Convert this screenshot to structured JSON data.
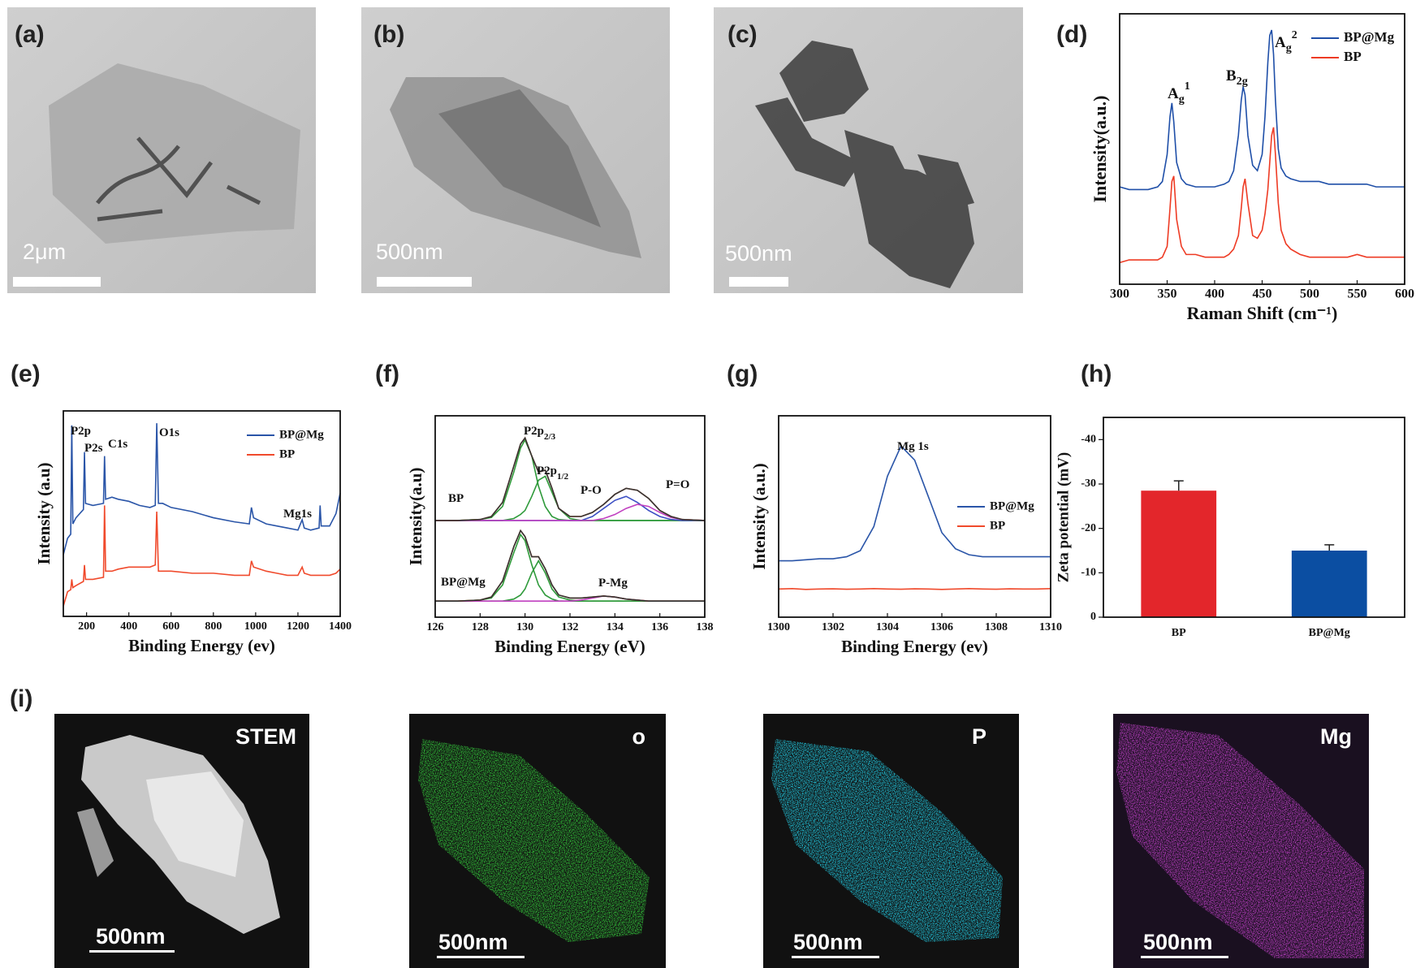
{
  "panels": {
    "a": {
      "label": "(a)",
      "scale": "2μm"
    },
    "b": {
      "label": "(b)",
      "scale": "500nm"
    },
    "c": {
      "label": "(c)",
      "scale": "500nm"
    },
    "i": {
      "label": "(i)",
      "maps": [
        {
          "title": "STEM",
          "scale": "500nm"
        },
        {
          "title": "o",
          "scale": "500nm"
        },
        {
          "title": "P",
          "scale": "500nm"
        },
        {
          "title": "Mg",
          "scale": "500nm"
        }
      ]
    }
  },
  "chart_data": [
    {
      "type": "line",
      "label": "(d)",
      "xlabel": "Raman Shift (cm⁻¹)",
      "ylabel": "Intensity(a.u.)",
      "xlim": [
        300,
        600
      ],
      "xticks": [
        300,
        350,
        400,
        450,
        500,
        550,
        600
      ],
      "ylim": [
        0,
        100
      ],
      "legend": "upper right",
      "annotations": [
        {
          "text": "A",
          "sub": "g",
          "sup": "1"
        },
        {
          "text": "B",
          "sub": "2g"
        },
        {
          "text": "A",
          "sub": "g",
          "sup": "2"
        }
      ],
      "x": [
        300,
        310,
        320,
        330,
        340,
        345,
        350,
        353,
        355,
        357,
        360,
        365,
        370,
        380,
        390,
        400,
        410,
        415,
        420,
        425,
        428,
        430,
        432,
        435,
        440,
        445,
        450,
        453,
        456,
        458,
        460,
        462,
        464,
        467,
        470,
        475,
        480,
        490,
        500,
        510,
        520,
        530,
        540,
        550,
        560,
        570,
        580,
        590,
        600
      ],
      "series": [
        {
          "name": "BP@Mg",
          "color": "#1f4fa8",
          "values": [
            36,
            35,
            35,
            35,
            36,
            38,
            48,
            62,
            67,
            60,
            45,
            39,
            37,
            36,
            36,
            36,
            37,
            38,
            42,
            55,
            68,
            73,
            70,
            55,
            44,
            42,
            48,
            62,
            82,
            92,
            94,
            85,
            68,
            50,
            43,
            40,
            39,
            38,
            38,
            38,
            37,
            37,
            37,
            37,
            37,
            36,
            36,
            36,
            36
          ]
        },
        {
          "name": "BP",
          "color": "#ee3b24",
          "values": [
            8,
            9,
            9,
            9,
            9,
            10,
            14,
            28,
            38,
            40,
            24,
            14,
            11,
            11,
            10,
            10,
            10,
            11,
            13,
            18,
            28,
            36,
            39,
            30,
            18,
            17,
            20,
            26,
            35,
            45,
            55,
            58,
            48,
            30,
            20,
            15,
            13,
            11,
            10,
            10,
            10,
            10,
            10,
            11,
            10,
            10,
            10,
            10,
            10
          ]
        }
      ]
    },
    {
      "type": "line",
      "label": "(e)",
      "xlabel": "Binding Energy (ev)",
      "ylabel": "Intensity (a.u)",
      "xlim": [
        90,
        1400
      ],
      "xticks": [
        200,
        400,
        600,
        800,
        1000,
        1200,
        1400
      ],
      "ylim": [
        0,
        100
      ],
      "legend": "upper right",
      "annotations": [
        {
          "text": "P2p"
        },
        {
          "text": "P2s"
        },
        {
          "text": "C1s"
        },
        {
          "text": "O1s"
        },
        {
          "text": "Mg1s"
        }
      ],
      "x": [
        90,
        110,
        125,
        130,
        135,
        150,
        185,
        190,
        195,
        230,
        280,
        285,
        290,
        320,
        350,
        400,
        450,
        500,
        525,
        532,
        540,
        560,
        600,
        700,
        800,
        900,
        970,
        980,
        990,
        1050,
        1100,
        1150,
        1200,
        1220,
        1230,
        1260,
        1300,
        1305,
        1310,
        1350,
        1380,
        1400
      ],
      "series": [
        {
          "name": "BP@Mg",
          "color": "#2a55a8",
          "values": [
            30,
            38,
            40,
            93,
            45,
            48,
            52,
            80,
            55,
            54,
            55,
            78,
            57,
            58,
            57,
            56,
            54,
            53,
            54,
            94,
            55,
            55,
            53,
            51,
            48,
            46,
            45,
            53,
            48,
            45,
            44,
            43,
            42,
            47,
            43,
            42,
            43,
            54,
            44,
            44,
            50,
            60
          ]
        },
        {
          "name": "BP",
          "color": "#f04a2c",
          "values": [
            5,
            12,
            13,
            18,
            14,
            15,
            17,
            25,
            18,
            18,
            19,
            54,
            22,
            22,
            23,
            24,
            24,
            24,
            25,
            51,
            22,
            22,
            22,
            21,
            21,
            20,
            20,
            27,
            24,
            22,
            21,
            20,
            20,
            24,
            21,
            20,
            20,
            20,
            20,
            20,
            21,
            23
          ]
        }
      ]
    },
    {
      "type": "line",
      "xlabel": "Binding Energy (eV)",
      "label": "(f)",
      "ylabel": "Intensity(a.u)",
      "xlim": [
        126,
        138
      ],
      "xticks": [
        126,
        128,
        130,
        132,
        134,
        136,
        138
      ],
      "ylim": [
        0,
        100
      ],
      "annotations": [
        {
          "text": "P2p",
          "sub": "2/3"
        },
        {
          "text": "P2p",
          "sub": "1/2"
        },
        {
          "text": "P-O"
        },
        {
          "text": "P=O"
        },
        {
          "text": "BP"
        },
        {
          "text": "BP@Mg"
        },
        {
          "text": "P-Mg"
        }
      ],
      "x": [
        126,
        127,
        128,
        128.5,
        129,
        129.5,
        129.8,
        130,
        130.3,
        130.6,
        130.9,
        131.2,
        131.5,
        132,
        132.5,
        133,
        133.5,
        134,
        134.5,
        135,
        135.5,
        136,
        136.5,
        137,
        138
      ],
      "series": [
        {
          "color": "#2e9a3a",
          "values": [
            48,
            48,
            48.5,
            49.5,
            55,
            72,
            84,
            88,
            80,
            65,
            55,
            50,
            48.5,
            48,
            48,
            48,
            48,
            48,
            48,
            48,
            48,
            48,
            48,
            48,
            48
          ]
        },
        {
          "color": "#2e9a3a",
          "values": [
            48,
            48,
            48,
            48,
            48,
            49,
            51,
            53,
            60,
            68,
            70,
            62,
            54,
            49,
            48,
            48,
            48,
            48,
            48,
            48,
            48,
            48,
            48,
            48,
            48
          ]
        },
        {
          "color": "#3b4fc4",
          "values": [
            48,
            48,
            48,
            48,
            48,
            48,
            48,
            48,
            48,
            48,
            48,
            48,
            48,
            48,
            48,
            50,
            54,
            58,
            60,
            57,
            53,
            50,
            48.5,
            48,
            48
          ]
        },
        {
          "color": "#c040c0",
          "values": [
            48,
            48,
            48,
            48,
            48,
            48,
            48,
            48,
            48,
            48,
            48,
            48,
            48,
            48,
            48,
            48,
            49,
            51,
            54,
            56,
            55,
            52,
            49.5,
            48.5,
            48
          ]
        },
        {
          "color": "#f0622c",
          "values": [
            48,
            48,
            48.5,
            50,
            57,
            75,
            86,
            89,
            80,
            72,
            73,
            64,
            54,
            50,
            50,
            52,
            56,
            61,
            64,
            63,
            59,
            53,
            50,
            48.5,
            48
          ]
        },
        {
          "color": "#333333",
          "values": [
            48,
            48,
            48.5,
            50,
            57,
            75,
            86,
            89,
            80,
            72,
            73,
            64,
            54,
            50,
            50,
            52,
            56,
            61,
            64,
            63,
            59,
            53,
            50,
            48.5,
            48
          ]
        },
        {
          "color": "#2e9a3a",
          "values": [
            8,
            8,
            8.5,
            9.5,
            16,
            32,
            41,
            38,
            26,
            16,
            11,
            9,
            8,
            8,
            8,
            8,
            8,
            8,
            8,
            8,
            8,
            8,
            8,
            8,
            8
          ]
        },
        {
          "color": "#2e9a3a",
          "values": [
            8,
            8,
            8,
            8,
            8,
            9,
            11,
            14,
            22,
            28,
            22,
            14,
            10,
            8.5,
            8,
            8,
            8,
            8,
            8,
            8,
            8,
            8,
            8,
            8,
            8
          ]
        },
        {
          "color": "#c040c0",
          "values": [
            8,
            8,
            8,
            8,
            8,
            8,
            8,
            8,
            8,
            8,
            8,
            8,
            8,
            8,
            8.5,
            9.5,
            10.5,
            10,
            9,
            8.5,
            8,
            8,
            8,
            8,
            8
          ]
        },
        {
          "color": "#f0622c",
          "values": [
            8,
            8,
            8.5,
            10,
            18,
            35,
            43,
            40,
            30,
            30,
            24,
            16,
            11,
            9.5,
            9.5,
            10,
            10.5,
            10,
            9,
            8.5,
            8,
            8,
            8,
            8,
            8
          ]
        },
        {
          "color": "#333333",
          "values": [
            8,
            8,
            8.5,
            10,
            18,
            35,
            43,
            40,
            30,
            30,
            24,
            16,
            11,
            9.5,
            9.5,
            10,
            10.5,
            10,
            9,
            8.5,
            8,
            8,
            8,
            8,
            8
          ]
        }
      ]
    },
    {
      "type": "line",
      "label": "(g)",
      "xlabel": "Binding Energy (ev)",
      "ylabel": "Intensity (a.u.)",
      "xlim": [
        1300,
        1310
      ],
      "xticks": [
        1300,
        1302,
        1304,
        1306,
        1308,
        1310
      ],
      "ylim": [
        0,
        100
      ],
      "legend": "center right",
      "annotations": [
        {
          "text": "Mg 1s"
        }
      ],
      "x": [
        1300,
        1300.5,
        1301,
        1301.5,
        1302,
        1302.5,
        1303,
        1303.5,
        1304,
        1304.5,
        1305,
        1305.5,
        1306,
        1306.5,
        1307,
        1307.5,
        1308,
        1308.5,
        1309,
        1309.5,
        1310
      ],
      "series": [
        {
          "name": "BP@Mg",
          "color": "#2a55a8",
          "values": [
            28,
            28,
            28.5,
            29,
            29,
            30,
            33,
            45,
            70,
            85,
            78,
            60,
            42,
            34,
            31,
            30,
            30,
            30,
            30,
            30,
            30
          ]
        },
        {
          "name": "BP",
          "color": "#f04a2c",
          "values": [
            14,
            14.2,
            13.8,
            14,
            14.1,
            13.9,
            14,
            14.2,
            14,
            13.9,
            14.1,
            14,
            13.8,
            14,
            14.2,
            14,
            13.9,
            14.1,
            14,
            14,
            14.2
          ]
        }
      ]
    },
    {
      "type": "bar",
      "label": "(h)",
      "ylabel": "Zeta potential (mV)",
      "categories": [
        "BP",
        "BP@Mg"
      ],
      "values": [
        -28.5,
        -15
      ],
      "errors": [
        2.2,
        1.3
      ],
      "colors": [
        "#e3262b",
        "#0b4ea2"
      ],
      "ylim": [
        0,
        -45
      ],
      "yticks": [
        0,
        -10,
        -20,
        -30,
        -40
      ]
    }
  ]
}
